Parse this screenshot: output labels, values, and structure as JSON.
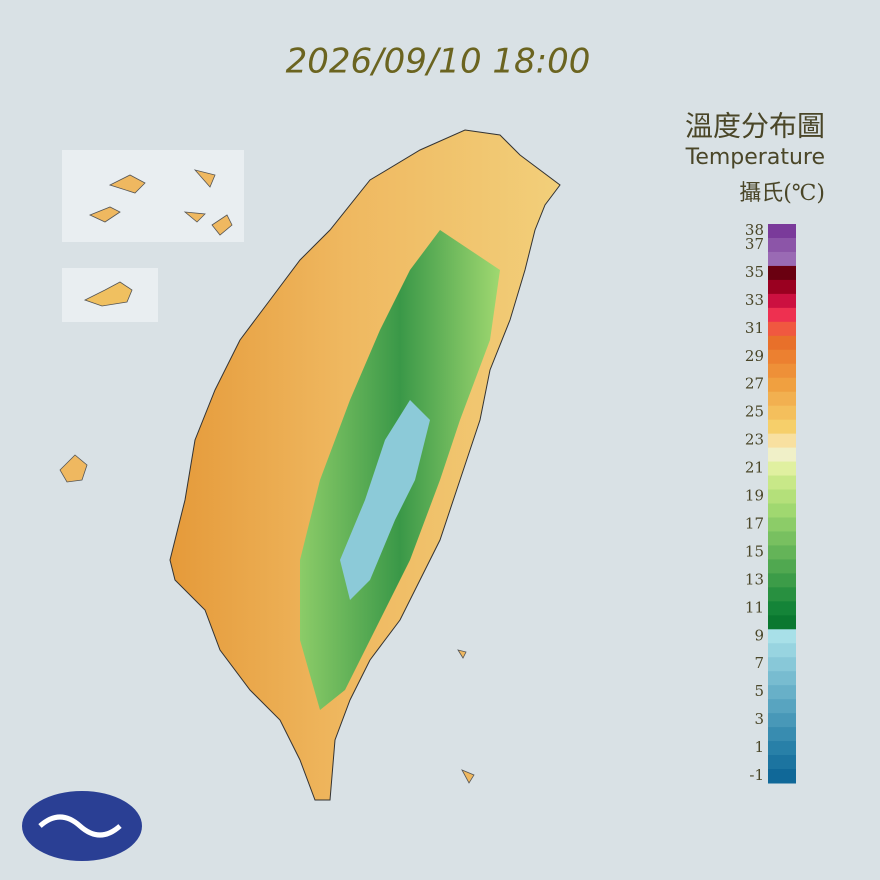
{
  "timestamp": "2026/09/10 18:00",
  "legend": {
    "title_zh": "溫度分布圖",
    "title_en": "Temperature",
    "unit": "攝氏(℃)",
    "ticks": [
      38,
      37,
      35,
      33,
      31,
      29,
      27,
      25,
      23,
      21,
      19,
      17,
      15,
      13,
      11,
      9,
      7,
      5,
      3,
      1,
      -1
    ],
    "colors": [
      "#7a3a9a",
      "#8c55a8",
      "#9a6ab4",
      "#6a0010",
      "#9a0020",
      "#cc1040",
      "#ee3050",
      "#f05840",
      "#e8702a",
      "#ec8030",
      "#ee9038",
      "#f0a040",
      "#f2b050",
      "#f4bf5c",
      "#f6cf6a",
      "#f8e0a0",
      "#f0f0c8",
      "#e0f0a0",
      "#c8e888",
      "#b4e07a",
      "#a0d870",
      "#8ccc68",
      "#78c060",
      "#64b458",
      "#50a850",
      "#3c9c48",
      "#289040",
      "#148438",
      "#0a7830",
      "#a8e0e8",
      "#98d4e0",
      "#88c8d8",
      "#78bcd0",
      "#68b0c8",
      "#58a4c0",
      "#4898b8",
      "#388cb0",
      "#2880a8",
      "#1c74a0",
      "#106898"
    ]
  }
}
